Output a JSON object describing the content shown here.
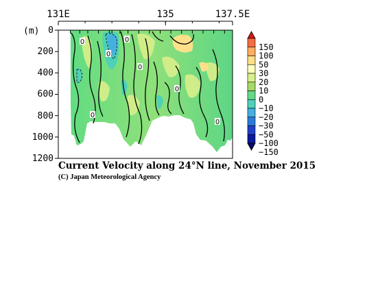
{
  "chart_data": {
    "type": "heatmap",
    "title": "Current Velocity along 24°N line, November 2015",
    "credit": "(C) Japan Meteorological Agency",
    "x_ticks": [
      "131E",
      "135",
      "137.5E"
    ],
    "x_tick_lon": [
      131,
      135,
      137.5
    ],
    "xlim": [
      131,
      137.5
    ],
    "ylabel": "(m)",
    "y_ticks": [
      "0",
      "200",
      "400",
      "600",
      "800",
      "1000",
      "1200"
    ],
    "y_tick_values": [
      0,
      200,
      400,
      600,
      800,
      1000,
      1200
    ],
    "ylim": [
      0,
      1200
    ],
    "colorbar": {
      "levels": [
        "150",
        "100",
        "50",
        "30",
        "20",
        "10",
        "0",
        "−10",
        "−20",
        "−30",
        "−50",
        "−100",
        "−150"
      ],
      "colors": [
        "#d7191c",
        "#f46d43",
        "#fdae61",
        "#fee08b",
        "#ffffbf",
        "#d9ef8b",
        "#a6d96a",
        "#66d98a",
        "#4fd0b8",
        "#45b0e0",
        "#2b7bd8",
        "#1f3fc8",
        "#0a1a9a",
        "#050a6a"
      ]
    },
    "zero_contour_labels": [
      "0",
      "0",
      "0",
      "0",
      "0",
      "0",
      "0"
    ],
    "bottom_depth_profile": {
      "lon": [
        132.3,
        132.6,
        133.0,
        133.4,
        133.8,
        134.2,
        134.6,
        135.0,
        135.4,
        135.8,
        136.2,
        136.6,
        137.0,
        137.4
      ],
      "depth": [
        1080,
        1010,
        870,
        900,
        930,
        990,
        1010,
        880,
        850,
        870,
        920,
        980,
        1100,
        1150
      ]
    }
  }
}
